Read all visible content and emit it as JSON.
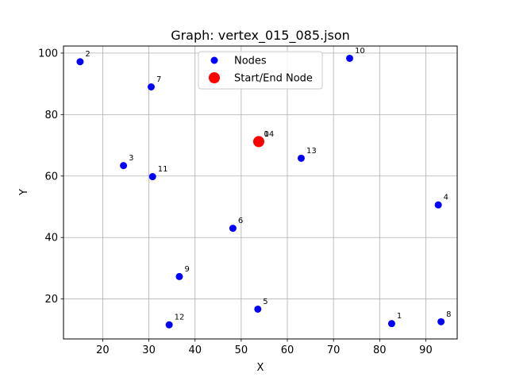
{
  "chart_data": {
    "type": "scatter",
    "title": "Graph: vertex_015_085.json",
    "xlabel": "X",
    "ylabel": "Y",
    "xlim": [
      11.5,
      96.8
    ],
    "ylim": [
      7.0,
      102.3
    ],
    "xticks": [
      20,
      30,
      40,
      50,
      60,
      70,
      80,
      90
    ],
    "yticks": [
      20,
      40,
      60,
      80,
      100
    ],
    "grid": true,
    "legend_position": "top-center",
    "series": [
      {
        "name": "Nodes",
        "color": "#0000ff",
        "points": [
          {
            "label": "0",
            "x": 53.8,
            "y": 71.2
          },
          {
            "label": "1",
            "x": 82.6,
            "y": 12.0
          },
          {
            "label": "2",
            "x": 15.1,
            "y": 97.2
          },
          {
            "label": "3",
            "x": 24.5,
            "y": 63.4
          },
          {
            "label": "4",
            "x": 92.7,
            "y": 50.6
          },
          {
            "label": "5",
            "x": 53.6,
            "y": 16.7
          },
          {
            "label": "6",
            "x": 48.2,
            "y": 43.0
          },
          {
            "label": "7",
            "x": 30.5,
            "y": 89.0
          },
          {
            "label": "8",
            "x": 93.3,
            "y": 12.6
          },
          {
            "label": "9",
            "x": 36.6,
            "y": 27.3
          },
          {
            "label": "10",
            "x": 73.5,
            "y": 98.3
          },
          {
            "label": "11",
            "x": 30.8,
            "y": 59.8
          },
          {
            "label": "12",
            "x": 34.4,
            "y": 11.6
          },
          {
            "label": "13",
            "x": 63.0,
            "y": 65.8
          },
          {
            "label": "14",
            "x": 53.8,
            "y": 71.2
          }
        ]
      },
      {
        "name": "Start/End Node",
        "color": "#ff0000",
        "points": [
          {
            "x": 53.8,
            "y": 71.2
          }
        ]
      }
    ]
  }
}
